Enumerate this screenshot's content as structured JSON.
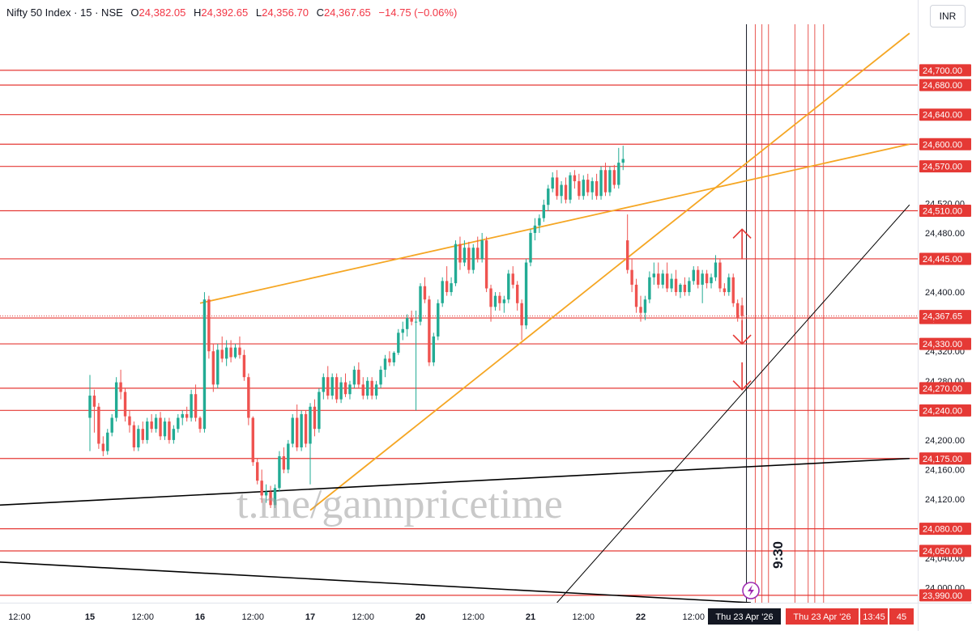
{
  "header": {
    "symbol": "Nifty 50 Index · 15 · NSE",
    "o_label": "O",
    "o": "24,382.05",
    "h_label": "H",
    "h": "24,392.65",
    "l_label": "L",
    "l": "24,356.70",
    "c_label": "C",
    "c": "24,367.65",
    "change": "−14.75 (−0.06%)"
  },
  "currency_button": "INR",
  "watermark": "t.me/gannpricetime",
  "time_annotation": "9:30",
  "colors": {
    "up": "#22ab94",
    "down": "#ef5350",
    "level": "#e53935",
    "trend_orange": "#f5a623",
    "trend_black": "#000000"
  },
  "chart_data": {
    "type": "candlestick",
    "title": "",
    "ylim": [
      23980,
      24760
    ],
    "y_ticks": [
      "24,000.00",
      "24,040.00",
      "24,120.00",
      "24,160.00",
      "24,200.00",
      "24,280.00",
      "24,320.00",
      "24,400.00",
      "24,480.00",
      "24,520.00"
    ],
    "x_ticks": [
      {
        "label": "12:00",
        "idx": -16
      },
      {
        "label": "15",
        "idx": 0
      },
      {
        "label": "12:00",
        "idx": 12
      },
      {
        "label": "16",
        "idx": 25
      },
      {
        "label": "12:00",
        "idx": 37
      },
      {
        "label": "17",
        "idx": 50
      },
      {
        "label": "12:00",
        "idx": 62
      },
      {
        "label": "20",
        "idx": 75
      },
      {
        "label": "12:00",
        "idx": 87
      },
      {
        "label": "21",
        "idx": 100
      },
      {
        "label": "12:00",
        "idx": 112
      },
      {
        "label": "22",
        "idx": 125
      },
      {
        "label": "12:00",
        "idx": 137
      }
    ],
    "last_price": {
      "value": 24367.65,
      "label": "24,367.65"
    },
    "price_levels": [
      {
        "value": 24700,
        "label": "24,700.00"
      },
      {
        "value": 24680,
        "label": "24,680.00"
      },
      {
        "value": 24640,
        "label": "24,640.00"
      },
      {
        "value": 24600,
        "label": "24,600.00"
      },
      {
        "value": 24570,
        "label": "24,570.00"
      },
      {
        "value": 24510,
        "label": "24,510.00"
      },
      {
        "value": 24445,
        "label": "24,445.00"
      },
      {
        "value": 24365,
        "label": "24,365.00"
      },
      {
        "value": 24330,
        "label": "24,330.00"
      },
      {
        "value": 24270,
        "label": "24,270.00"
      },
      {
        "value": 24240,
        "label": "24,240.00"
      },
      {
        "value": 24175,
        "label": "24,175.00"
      },
      {
        "value": 24080,
        "label": "24,080.00"
      },
      {
        "value": 24050,
        "label": "24,050.00"
      },
      {
        "value": 23990,
        "label": "23,990.00"
      }
    ],
    "time_levels": [
      151,
      152.5,
      154,
      160,
      163,
      164.5,
      166.5
    ],
    "crosshair_idx": 149,
    "bottom_labels": {
      "cursor": "Thu 23 Apr '26",
      "date": "Thu 23 Apr '26",
      "time": "13:45",
      "frame": "45"
    },
    "trend_lines": [
      {
        "color": "orange",
        "from": [
          25,
          24385
        ],
        "to": [
          186,
          24600
        ]
      },
      {
        "color": "orange",
        "from": [
          50,
          24105
        ],
        "to": [
          186,
          24750
        ]
      },
      {
        "color": "black",
        "from": [
          -27,
          24110
        ],
        "to": [
          186,
          24175
        ]
      },
      {
        "color": "black",
        "from": [
          -27,
          24037
        ],
        "to": [
          150,
          23980
        ]
      },
      {
        "color": "black_thin",
        "from": [
          106,
          23980
        ],
        "to": [
          186,
          24518
        ]
      }
    ],
    "arrows": [
      {
        "idx": 148,
        "from": 24445,
        "to": 24485,
        "dir": "up"
      },
      {
        "idx": 148,
        "from": 24362,
        "to": 24330,
        "dir": "down"
      },
      {
        "idx": 148,
        "from": 24305,
        "to": 24268,
        "dir": "down"
      }
    ],
    "candles": [
      {
        "o": 24230,
        "h": 24288,
        "l": 24185,
        "c": 24260
      },
      {
        "o": 24260,
        "h": 24268,
        "l": 24210,
        "c": 24245
      },
      {
        "o": 24245,
        "h": 24250,
        "l": 24188,
        "c": 24195
      },
      {
        "o": 24195,
        "h": 24205,
        "l": 24178,
        "c": 24185
      },
      {
        "o": 24185,
        "h": 24215,
        "l": 24180,
        "c": 24210
      },
      {
        "o": 24210,
        "h": 24235,
        "l": 24205,
        "c": 24230
      },
      {
        "o": 24230,
        "h": 24285,
        "l": 24225,
        "c": 24278
      },
      {
        "o": 24278,
        "h": 24295,
        "l": 24255,
        "c": 24265
      },
      {
        "o": 24265,
        "h": 24270,
        "l": 24225,
        "c": 24232
      },
      {
        "o": 24232,
        "h": 24240,
        "l": 24210,
        "c": 24220
      },
      {
        "o": 24220,
        "h": 24225,
        "l": 24185,
        "c": 24190
      },
      {
        "o": 24190,
        "h": 24220,
        "l": 24185,
        "c": 24215
      },
      {
        "o": 24215,
        "h": 24225,
        "l": 24195,
        "c": 24200
      },
      {
        "o": 24200,
        "h": 24230,
        "l": 24195,
        "c": 24225
      },
      {
        "o": 24225,
        "h": 24235,
        "l": 24210,
        "c": 24215
      },
      {
        "o": 24215,
        "h": 24235,
        "l": 24210,
        "c": 24230
      },
      {
        "o": 24230,
        "h": 24238,
        "l": 24200,
        "c": 24205
      },
      {
        "o": 24205,
        "h": 24230,
        "l": 24200,
        "c": 24225
      },
      {
        "o": 24225,
        "h": 24230,
        "l": 24195,
        "c": 24200
      },
      {
        "o": 24200,
        "h": 24220,
        "l": 24195,
        "c": 24215
      },
      {
        "o": 24215,
        "h": 24235,
        "l": 24210,
        "c": 24230
      },
      {
        "o": 24230,
        "h": 24240,
        "l": 24220,
        "c": 24235
      },
      {
        "o": 24235,
        "h": 24245,
        "l": 24225,
        "c": 24230
      },
      {
        "o": 24230,
        "h": 24268,
        "l": 24225,
        "c": 24262
      },
      {
        "o": 24262,
        "h": 24275,
        "l": 24225,
        "c": 24230
      },
      {
        "o": 24230,
        "h": 24232,
        "l": 24210,
        "c": 24215
      },
      {
        "o": 24215,
        "h": 24400,
        "l": 24210,
        "c": 24390
      },
      {
        "o": 24390,
        "h": 24395,
        "l": 24310,
        "c": 24320
      },
      {
        "o": 24320,
        "h": 24330,
        "l": 24265,
        "c": 24275
      },
      {
        "o": 24275,
        "h": 24330,
        "l": 24270,
        "c": 24322
      },
      {
        "o": 24322,
        "h": 24340,
        "l": 24305,
        "c": 24310
      },
      {
        "o": 24310,
        "h": 24335,
        "l": 24300,
        "c": 24325
      },
      {
        "o": 24325,
        "h": 24335,
        "l": 24305,
        "c": 24312
      },
      {
        "o": 24312,
        "h": 24330,
        "l": 24310,
        "c": 24325
      },
      {
        "o": 24325,
        "h": 24340,
        "l": 24310,
        "c": 24315
      },
      {
        "o": 24315,
        "h": 24322,
        "l": 24280,
        "c": 24285
      },
      {
        "o": 24285,
        "h": 24290,
        "l": 24220,
        "c": 24230
      },
      {
        "o": 24230,
        "h": 24232,
        "l": 24165,
        "c": 24170
      },
      {
        "o": 24170,
        "h": 24175,
        "l": 24140,
        "c": 24145
      },
      {
        "o": 24145,
        "h": 24160,
        "l": 24115,
        "c": 24125
      },
      {
        "o": 24125,
        "h": 24140,
        "l": 24115,
        "c": 24130
      },
      {
        "o": 24130,
        "h": 24138,
        "l": 24108,
        "c": 24112
      },
      {
        "o": 24112,
        "h": 24140,
        "l": 24108,
        "c": 24135
      },
      {
        "o": 24135,
        "h": 24185,
        "l": 24130,
        "c": 24178
      },
      {
        "o": 24178,
        "h": 24190,
        "l": 24155,
        "c": 24160
      },
      {
        "o": 24160,
        "h": 24200,
        "l": 24155,
        "c": 24195
      },
      {
        "o": 24195,
        "h": 24235,
        "l": 24190,
        "c": 24230
      },
      {
        "o": 24230,
        "h": 24248,
        "l": 24185,
        "c": 24190
      },
      {
        "o": 24190,
        "h": 24240,
        "l": 24185,
        "c": 24235
      },
      {
        "o": 24235,
        "h": 24240,
        "l": 24190,
        "c": 24195
      },
      {
        "o": 24195,
        "h": 24250,
        "l": 24140,
        "c": 24245
      },
      {
        "o": 24245,
        "h": 24255,
        "l": 24205,
        "c": 24215
      },
      {
        "o": 24215,
        "h": 24270,
        "l": 24210,
        "c": 24265
      },
      {
        "o": 24265,
        "h": 24290,
        "l": 24255,
        "c": 24285
      },
      {
        "o": 24285,
        "h": 24300,
        "l": 24255,
        "c": 24260
      },
      {
        "o": 24260,
        "h": 24290,
        "l": 24255,
        "c": 24285
      },
      {
        "o": 24285,
        "h": 24290,
        "l": 24250,
        "c": 24255
      },
      {
        "o": 24255,
        "h": 24285,
        "l": 24250,
        "c": 24278
      },
      {
        "o": 24278,
        "h": 24290,
        "l": 24258,
        "c": 24262
      },
      {
        "o": 24262,
        "h": 24280,
        "l": 24255,
        "c": 24275
      },
      {
        "o": 24275,
        "h": 24300,
        "l": 24270,
        "c": 24295
      },
      {
        "o": 24295,
        "h": 24305,
        "l": 24270,
        "c": 24275
      },
      {
        "o": 24275,
        "h": 24285,
        "l": 24255,
        "c": 24260
      },
      {
        "o": 24260,
        "h": 24285,
        "l": 24255,
        "c": 24280
      },
      {
        "o": 24280,
        "h": 24285,
        "l": 24255,
        "c": 24260
      },
      {
        "o": 24260,
        "h": 24280,
        "l": 24255,
        "c": 24275
      },
      {
        "o": 24275,
        "h": 24300,
        "l": 24270,
        "c": 24295
      },
      {
        "o": 24295,
        "h": 24315,
        "l": 24285,
        "c": 24310
      },
      {
        "o": 24310,
        "h": 24320,
        "l": 24300,
        "c": 24305
      },
      {
        "o": 24305,
        "h": 24320,
        "l": 24300,
        "c": 24318
      },
      {
        "o": 24318,
        "h": 24350,
        "l": 24315,
        "c": 24345
      },
      {
        "o": 24345,
        "h": 24360,
        "l": 24335,
        "c": 24350
      },
      {
        "o": 24350,
        "h": 24370,
        "l": 24340,
        "c": 24365
      },
      {
        "o": 24365,
        "h": 24375,
        "l": 24355,
        "c": 24360
      },
      {
        "o": 24360,
        "h": 24375,
        "l": 24240,
        "c": 24360
      },
      {
        "o": 24360,
        "h": 24412,
        "l": 24355,
        "c": 24408
      },
      {
        "o": 24408,
        "h": 24420,
        "l": 24385,
        "c": 24390
      },
      {
        "o": 24390,
        "h": 24395,
        "l": 24300,
        "c": 24305
      },
      {
        "o": 24305,
        "h": 24345,
        "l": 24300,
        "c": 24340
      },
      {
        "o": 24340,
        "h": 24390,
        "l": 24335,
        "c": 24385
      },
      {
        "o": 24385,
        "h": 24420,
        "l": 24380,
        "c": 24415
      },
      {
        "o": 24415,
        "h": 24435,
        "l": 24395,
        "c": 24400
      },
      {
        "o": 24400,
        "h": 24420,
        "l": 24395,
        "c": 24412
      },
      {
        "o": 24412,
        "h": 24470,
        "l": 24408,
        "c": 24465
      },
      {
        "o": 24465,
        "h": 24475,
        "l": 24430,
        "c": 24440
      },
      {
        "o": 24440,
        "h": 24470,
        "l": 24435,
        "c": 24460
      },
      {
        "o": 24460,
        "h": 24468,
        "l": 24425,
        "c": 24430
      },
      {
        "o": 24430,
        "h": 24465,
        "l": 24425,
        "c": 24460
      },
      {
        "o": 24460,
        "h": 24475,
        "l": 24440,
        "c": 24445
      },
      {
        "o": 24445,
        "h": 24480,
        "l": 24440,
        "c": 24470
      },
      {
        "o": 24470,
        "h": 24475,
        "l": 24400,
        "c": 24405
      },
      {
        "o": 24405,
        "h": 24410,
        "l": 24360,
        "c": 24380
      },
      {
        "o": 24380,
        "h": 24400,
        "l": 24375,
        "c": 24395
      },
      {
        "o": 24395,
        "h": 24400,
        "l": 24375,
        "c": 24385
      },
      {
        "o": 24385,
        "h": 24395,
        "l": 24372,
        "c": 24390
      },
      {
        "o": 24390,
        "h": 24430,
        "l": 24385,
        "c": 24425
      },
      {
        "o": 24425,
        "h": 24435,
        "l": 24405,
        "c": 24410
      },
      {
        "o": 24410,
        "h": 24415,
        "l": 24375,
        "c": 24385
      },
      {
        "o": 24385,
        "h": 24390,
        "l": 24335,
        "c": 24355
      },
      {
        "o": 24355,
        "h": 24445,
        "l": 24350,
        "c": 24440
      },
      {
        "o": 24440,
        "h": 24485,
        "l": 24435,
        "c": 24480
      },
      {
        "o": 24480,
        "h": 24500,
        "l": 24470,
        "c": 24490
      },
      {
        "o": 24490,
        "h": 24505,
        "l": 24480,
        "c": 24500
      },
      {
        "o": 24500,
        "h": 24525,
        "l": 24495,
        "c": 24518
      },
      {
        "o": 24518,
        "h": 24545,
        "l": 24510,
        "c": 24540
      },
      {
        "o": 24540,
        "h": 24562,
        "l": 24535,
        "c": 24555
      },
      {
        "o": 24555,
        "h": 24565,
        "l": 24525,
        "c": 24530
      },
      {
        "o": 24530,
        "h": 24550,
        "l": 24520,
        "c": 24545
      },
      {
        "o": 24545,
        "h": 24555,
        "l": 24520,
        "c": 24525
      },
      {
        "o": 24525,
        "h": 24562,
        "l": 24520,
        "c": 24558
      },
      {
        "o": 24558,
        "h": 24565,
        "l": 24540,
        "c": 24550
      },
      {
        "o": 24550,
        "h": 24560,
        "l": 24525,
        "c": 24530
      },
      {
        "o": 24530,
        "h": 24558,
        "l": 24525,
        "c": 24552
      },
      {
        "o": 24552,
        "h": 24560,
        "l": 24530,
        "c": 24535
      },
      {
        "o": 24535,
        "h": 24555,
        "l": 24525,
        "c": 24550
      },
      {
        "o": 24550,
        "h": 24560,
        "l": 24525,
        "c": 24530
      },
      {
        "o": 24530,
        "h": 24570,
        "l": 24525,
        "c": 24565
      },
      {
        "o": 24565,
        "h": 24575,
        "l": 24530,
        "c": 24535
      },
      {
        "o": 24535,
        "h": 24570,
        "l": 24530,
        "c": 24565
      },
      {
        "o": 24565,
        "h": 24572,
        "l": 24540,
        "c": 24545
      },
      {
        "o": 24545,
        "h": 24595,
        "l": 24540,
        "c": 24575
      },
      {
        "o": 24575,
        "h": 24598,
        "l": 24565,
        "c": 24580
      },
      {
        "o": 24470,
        "h": 24505,
        "l": 24425,
        "c": 24430
      },
      {
        "o": 24430,
        "h": 24445,
        "l": 24400,
        "c": 24410
      },
      {
        "o": 24410,
        "h": 24418,
        "l": 24372,
        "c": 24380
      },
      {
        "o": 24380,
        "h": 24395,
        "l": 24360,
        "c": 24372
      },
      {
        "o": 24372,
        "h": 24395,
        "l": 24362,
        "c": 24390
      },
      {
        "o": 24390,
        "h": 24428,
        "l": 24385,
        "c": 24420
      },
      {
        "o": 24420,
        "h": 24440,
        "l": 24410,
        "c": 24425
      },
      {
        "o": 24425,
        "h": 24440,
        "l": 24405,
        "c": 24410
      },
      {
        "o": 24410,
        "h": 24430,
        "l": 24405,
        "c": 24425
      },
      {
        "o": 24425,
        "h": 24440,
        "l": 24400,
        "c": 24405
      },
      {
        "o": 24405,
        "h": 24425,
        "l": 24400,
        "c": 24418
      },
      {
        "o": 24418,
        "h": 24430,
        "l": 24395,
        "c": 24400
      },
      {
        "o": 24400,
        "h": 24412,
        "l": 24392,
        "c": 24410
      },
      {
        "o": 24410,
        "h": 24420,
        "l": 24395,
        "c": 24400
      },
      {
        "o": 24400,
        "h": 24420,
        "l": 24395,
        "c": 24415
      },
      {
        "o": 24415,
        "h": 24435,
        "l": 24410,
        "c": 24430
      },
      {
        "o": 24430,
        "h": 24435,
        "l": 24405,
        "c": 24410
      },
      {
        "o": 24410,
        "h": 24430,
        "l": 24385,
        "c": 24425
      },
      {
        "o": 24425,
        "h": 24430,
        "l": 24405,
        "c": 24412
      },
      {
        "o": 24412,
        "h": 24425,
        "l": 24405,
        "c": 24420
      },
      {
        "o": 24420,
        "h": 24450,
        "l": 24415,
        "c": 24440
      },
      {
        "o": 24440,
        "h": 24445,
        "l": 24400,
        "c": 24405
      },
      {
        "o": 24405,
        "h": 24412,
        "l": 24395,
        "c": 24400
      },
      {
        "o": 24400,
        "h": 24425,
        "l": 24395,
        "c": 24420
      },
      {
        "o": 24420,
        "h": 24425,
        "l": 24380,
        "c": 24385
      },
      {
        "o": 24385,
        "h": 24390,
        "l": 24360,
        "c": 24365
      },
      {
        "o": 24382.05,
        "h": 24392.65,
        "l": 24356.7,
        "c": 24367.65
      }
    ]
  }
}
